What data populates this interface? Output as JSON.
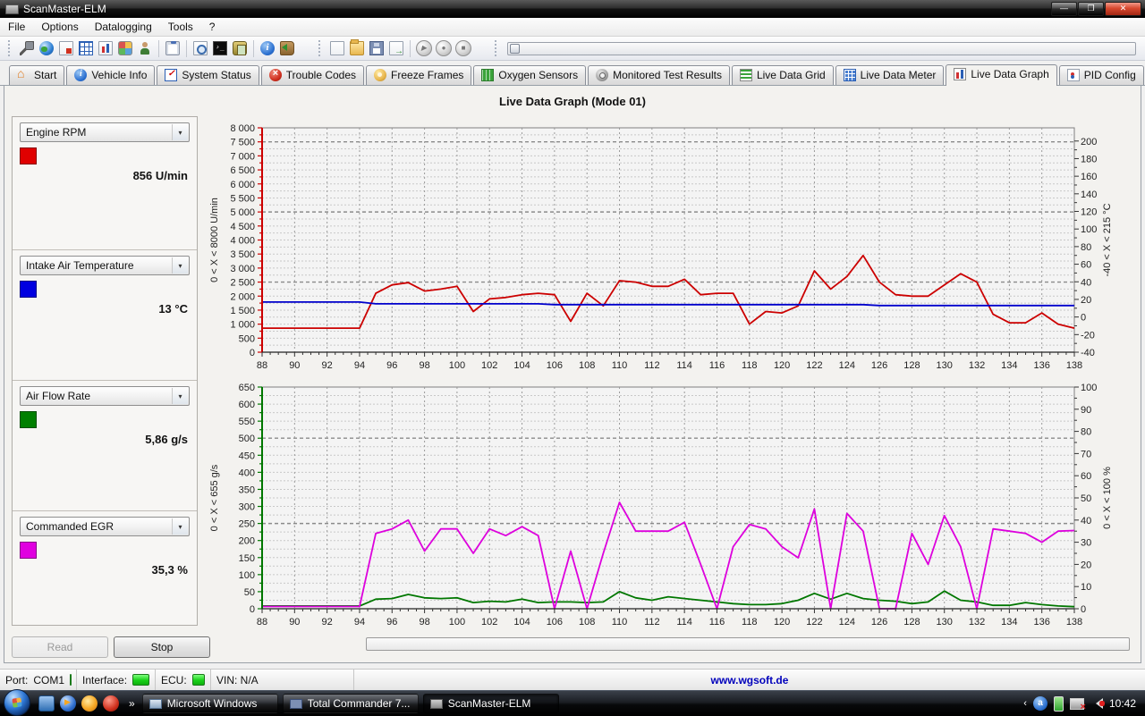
{
  "window": {
    "title": "ScanMaster-ELM"
  },
  "menu": {
    "items": [
      "File",
      "Options",
      "Datalogging",
      "Tools",
      "?"
    ]
  },
  "tabs": [
    {
      "label": "Start"
    },
    {
      "label": "Vehicle Info"
    },
    {
      "label": "System Status"
    },
    {
      "label": "Trouble Codes"
    },
    {
      "label": "Freeze Frames"
    },
    {
      "label": "Oxygen Sensors"
    },
    {
      "label": "Monitored Test Results"
    },
    {
      "label": "Live Data Grid"
    },
    {
      "label": "Live Data Meter"
    },
    {
      "label": "Live Data Graph"
    },
    {
      "label": "PID Config"
    }
  ],
  "header": {
    "title": "Live Data Graph (Mode 01)"
  },
  "pids": [
    {
      "name": "Engine RPM",
      "color": "#e00000",
      "value": "856 U/min"
    },
    {
      "name": "Intake Air Temperature",
      "color": "#0000e0",
      "value": "13 °C"
    },
    {
      "name": "Air Flow Rate",
      "color": "#008000",
      "value": "5,86 g/s"
    },
    {
      "name": "Commanded EGR",
      "color": "#e000e0",
      "value": "35,3 %"
    }
  ],
  "buttons": {
    "read": "Read",
    "stop": "Stop"
  },
  "statusbar": {
    "port_label": "Port:",
    "port_value": "COM1",
    "interface_label": "Interface:",
    "ecu_label": "ECU:",
    "vin": "VIN: N/A",
    "website": "www.wgsoft.de"
  },
  "taskbar": {
    "tasks": [
      "Microsoft Windows",
      "Total Commander 7...",
      "ScanMaster-ELM"
    ],
    "clock": "10:42"
  },
  "chart_data": [
    {
      "type": "line",
      "x_min": 88,
      "x_max": 138,
      "x_label_step": 2,
      "grid": true,
      "legend": "none",
      "left_axis": {
        "min": 0,
        "max": 8000,
        "label_step": 500,
        "minor_step": 250,
        "major_step": 2500,
        "label": "0 < X < 8000 U/min",
        "color": "#cc0000"
      },
      "right_axis": {
        "min": -40,
        "max": 215,
        "label_step": 20,
        "label_max": 200,
        "label": "-40 < X < 215 °C"
      },
      "series": [
        {
          "name": "Engine RPM",
          "axis": "left",
          "color": "#cc0000",
          "values": [
            856,
            856,
            856,
            856,
            856,
            856,
            856,
            2100,
            2400,
            2480,
            2180,
            2250,
            2350,
            1450,
            1900,
            1950,
            2050,
            2100,
            2050,
            1100,
            2100,
            1650,
            2550,
            2500,
            2350,
            2350,
            2600,
            2050,
            2100,
            2100,
            1000,
            1450,
            1400,
            1650,
            2900,
            2250,
            2700,
            3450,
            2500,
            2050,
            2000,
            2000,
            2400,
            2800,
            2500,
            1350,
            1050,
            1050,
            1400,
            1000,
            856
          ]
        },
        {
          "name": "Intake Air Temperature",
          "axis": "right",
          "color": "#0000cc",
          "values": [
            17,
            17,
            17,
            17,
            17,
            17,
            17,
            15,
            15,
            15,
            15,
            15,
            15,
            15,
            15,
            15,
            15,
            15,
            14,
            14,
            14,
            14,
            14,
            14,
            14,
            14,
            14,
            14,
            14,
            14,
            14,
            14,
            14,
            14,
            14,
            14,
            14,
            14,
            13,
            13,
            13,
            13,
            13,
            13,
            13,
            13,
            13,
            13,
            13,
            13,
            13
          ]
        }
      ]
    },
    {
      "type": "line",
      "x_min": 88,
      "x_max": 138,
      "x_label_step": 2,
      "grid": true,
      "legend": "none",
      "left_axis": {
        "min": 0,
        "max": 650,
        "label_step": 50,
        "minor_step": 25,
        "major_step": 250,
        "label": "0 < X < 655 g/s",
        "color": "#007700"
      },
      "right_axis": {
        "min": 0,
        "max": 100,
        "label_step": 10,
        "label_max": 100,
        "label": "0 < X < 100 %"
      },
      "series": [
        {
          "name": "Air Flow Rate",
          "axis": "left",
          "color": "#007700",
          "values": [
            8,
            8,
            8,
            8,
            8,
            8,
            8,
            28,
            30,
            42,
            32,
            30,
            32,
            18,
            22,
            20,
            28,
            18,
            20,
            20,
            18,
            20,
            50,
            32,
            25,
            35,
            30,
            25,
            20,
            15,
            12,
            12,
            15,
            25,
            45,
            28,
            45,
            30,
            25,
            22,
            15,
            20,
            52,
            25,
            20,
            10,
            10,
            18,
            12,
            8,
            6
          ]
        },
        {
          "name": "Commanded EGR",
          "axis": "right",
          "color": "#dd00dd",
          "values": [
            1,
            1,
            1,
            1,
            1,
            1,
            1,
            34,
            36,
            40,
            26,
            36,
            36,
            25,
            36,
            33,
            37,
            33,
            0,
            26,
            0,
            25,
            48,
            35,
            35,
            35,
            39,
            20,
            0,
            28,
            38,
            36,
            28,
            23,
            45,
            0,
            43,
            35,
            0,
            0,
            34,
            20,
            42,
            28,
            0,
            36,
            35,
            34,
            30,
            35,
            35.3
          ]
        }
      ]
    }
  ]
}
